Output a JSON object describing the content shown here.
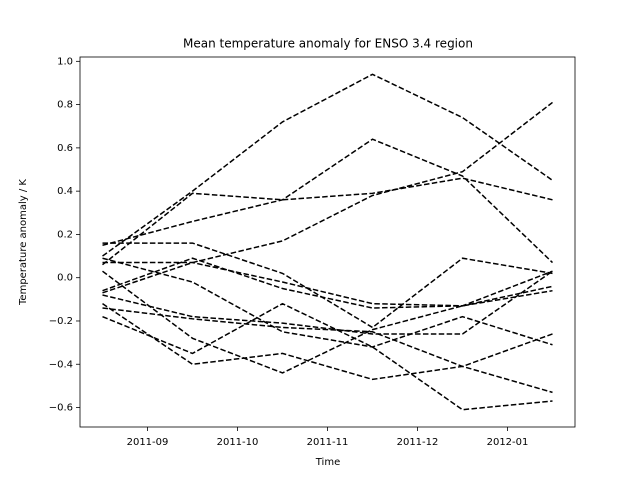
{
  "chart_data": {
    "type": "line",
    "title": "Mean temperature anomaly for ENSO 3.4 region",
    "x_label": "Time",
    "y_label": "Temperature anomaly / K",
    "x": [
      "2011-08",
      "2011-09",
      "2011-10",
      "2011-11",
      "2011-12",
      "2012-01"
    ],
    "xlim": [
      "2011-08",
      "2012-01"
    ],
    "xticks": [
      "2011-09",
      "2011-10",
      "2011-11",
      "2011-12",
      "2012-01"
    ],
    "ylim": [
      -0.69,
      1.02
    ],
    "yticks": [
      {
        "value": -0.6,
        "label": "−0.6"
      },
      {
        "value": -0.4,
        "label": "−0.4"
      },
      {
        "value": -0.2,
        "label": "−0.2"
      },
      {
        "value": 0,
        "label": "0.0"
      },
      0.2,
      0.4,
      0.6,
      0.8,
      {
        "value": 1,
        "label": "1.0"
      }
    ],
    "linestyle": "dashed",
    "series": [
      {
        "color": "#000000",
        "values": [
          0.1,
          0.4,
          0.72,
          0.94,
          0.74,
          0.45
        ]
      },
      {
        "color": "#000000",
        "values": [
          0.06,
          0.39,
          0.36,
          0.39,
          0.46,
          0.36
        ]
      },
      {
        "color": "#000000",
        "values": [
          0.15,
          0.26,
          0.36,
          0.64,
          0.47,
          0.07
        ]
      },
      {
        "color": "#000000",
        "values": [
          -0.07,
          0.07,
          0.17,
          0.38,
          0.49,
          0.81
        ]
      },
      {
        "color": "#000000",
        "values": [
          0.16,
          0.16,
          0.02,
          -0.23,
          0.09,
          0.02
        ]
      },
      {
        "color": "#000000",
        "values": [
          0.07,
          0.07,
          -0.02,
          -0.12,
          -0.13,
          0.03
        ]
      },
      {
        "color": "#000000",
        "values": [
          -0.06,
          0.09,
          -0.05,
          -0.14,
          -0.13,
          -0.04
        ]
      },
      {
        "color": "#000000",
        "values": [
          0.03,
          -0.28,
          -0.44,
          -0.24,
          -0.13,
          -0.06
        ]
      },
      {
        "color": "#000000",
        "values": [
          0.09,
          -0.02,
          -0.25,
          -0.32,
          -0.18,
          -0.31
        ]
      },
      {
        "color": "#000000",
        "values": [
          -0.08,
          -0.18,
          -0.21,
          -0.26,
          -0.26,
          0.03
        ]
      },
      {
        "color": "#000000",
        "values": [
          -0.14,
          -0.19,
          -0.23,
          -0.25,
          -0.41,
          -0.53
        ]
      },
      {
        "color": "#000000",
        "values": [
          -0.18,
          -0.35,
          -0.12,
          -0.32,
          -0.61,
          -0.57
        ]
      },
      {
        "color": "#000000",
        "values": [
          -0.12,
          -0.4,
          -0.35,
          -0.47,
          -0.41,
          -0.26
        ]
      }
    ]
  }
}
